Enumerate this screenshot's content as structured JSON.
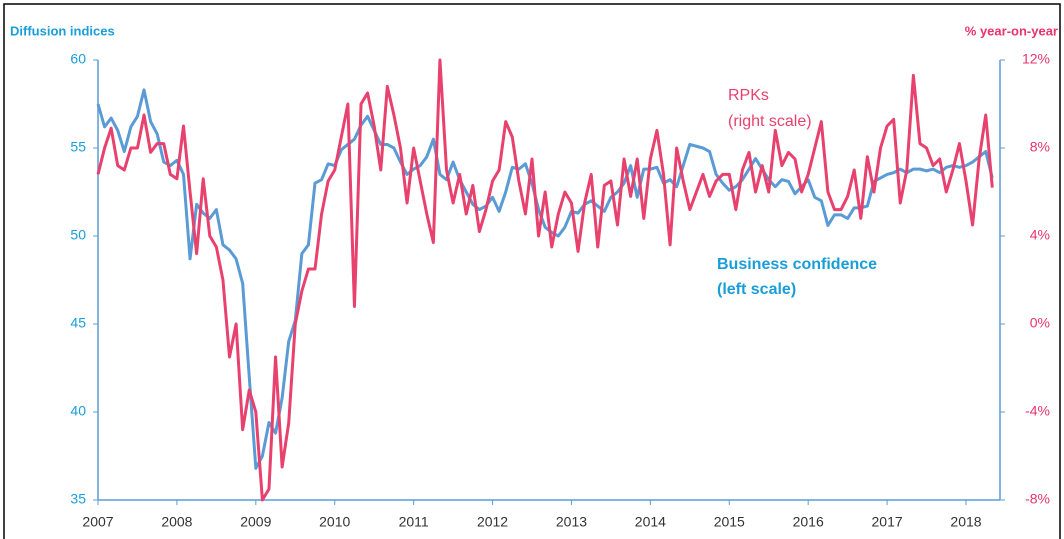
{
  "chart_data": {
    "type": "line",
    "y_axis_label": "Diffusion indices",
    "y2_axis_label": "% year-on-year",
    "categories": [
      "2007",
      null,
      null,
      null,
      null,
      null,
      null,
      null,
      null,
      null,
      null,
      null,
      "2008",
      null,
      null,
      null,
      null,
      null,
      null,
      null,
      null,
      null,
      null,
      null,
      "2009",
      null,
      null,
      null,
      null,
      null,
      null,
      null,
      null,
      null,
      null,
      null,
      "2010",
      null,
      null,
      null,
      null,
      null,
      null,
      null,
      null,
      null,
      null,
      null,
      "2011",
      null,
      null,
      null,
      null,
      null,
      null,
      null,
      null,
      null,
      null,
      null,
      "2012",
      null,
      null,
      null,
      null,
      null,
      null,
      null,
      null,
      null,
      null,
      null,
      "2013",
      null,
      null,
      null,
      null,
      null,
      null,
      null,
      null,
      null,
      null,
      null,
      "2014",
      null,
      null,
      null,
      null,
      null,
      null,
      null,
      null,
      null,
      null,
      null,
      "2015",
      null,
      null,
      null,
      null,
      null,
      null,
      null,
      null,
      null,
      null,
      null,
      "2016",
      null,
      null,
      null,
      null,
      null,
      null,
      null,
      null,
      null,
      null,
      null,
      "2017",
      null,
      null,
      null,
      null,
      null,
      null,
      null,
      null,
      null,
      null,
      null,
      "2018",
      null,
      null,
      null,
      null
    ],
    "series": [
      {
        "name": "Business confidence",
        "color": "#5b9bd5",
        "axis": "y",
        "values": [
          57.5,
          56.2,
          56.7,
          56.0,
          54.8,
          56.2,
          56.8,
          58.3,
          56.5,
          55.8,
          54.2,
          54.0,
          54.3,
          53.5,
          48.7,
          51.8,
          51.3,
          51.0,
          51.5,
          49.5,
          49.2,
          48.7,
          47.3,
          42.0,
          36.8,
          37.5,
          39.4,
          38.8,
          40.8,
          44.0,
          45.2,
          49.0,
          49.5,
          53.0,
          53.2,
          54.1,
          54.0,
          54.9,
          55.2,
          55.5,
          56.3,
          56.8,
          56.0,
          55.2,
          55.2,
          55.0,
          54.2,
          53.5,
          53.8,
          54.0,
          54.5,
          55.5,
          53.5,
          53.2,
          54.2,
          53.2,
          52.5,
          51.8,
          51.5,
          51.7,
          52.2,
          51.4,
          52.5,
          53.9,
          53.8,
          54.1,
          53.0,
          51.5,
          50.5,
          50.2,
          50.0,
          50.5,
          51.4,
          51.3,
          51.8,
          52.0,
          51.7,
          51.4,
          52.2,
          52.5,
          53.0,
          54.0,
          52.2,
          53.8,
          53.8,
          53.9,
          53.0,
          53.2,
          52.8,
          54.0,
          55.2,
          55.1,
          55.0,
          54.8,
          53.5,
          53.0,
          52.6,
          52.8,
          53.2,
          53.8,
          54.4,
          53.8,
          53.2,
          52.8,
          53.2,
          53.1,
          52.4,
          52.8,
          53.2,
          52.2,
          52.0,
          50.6,
          51.2,
          51.2,
          51.0,
          51.6,
          51.6,
          51.7,
          53.1,
          53.3,
          53.5,
          53.6,
          53.8,
          53.6,
          53.8,
          53.8,
          53.7,
          53.8,
          53.6,
          53.9,
          54.0,
          53.9,
          54.0,
          54.2,
          54.5,
          54.8,
          53.3
        ]
      },
      {
        "name": "RPKs",
        "color": "#e8416e",
        "axis": "y2",
        "values": [
          6.8,
          8.0,
          8.9,
          7.2,
          7.0,
          8.0,
          8.0,
          9.5,
          7.8,
          8.2,
          8.2,
          6.8,
          6.6,
          9.0,
          6.0,
          3.2,
          6.6,
          4.0,
          3.5,
          2.0,
          -1.5,
          0.0,
          -4.8,
          -3.0,
          -4.0,
          -8.0,
          -7.5,
          -1.5,
          -6.5,
          -4.5,
          0.0,
          1.5,
          2.5,
          2.5,
          5.0,
          6.5,
          7.0,
          8.5,
          10.0,
          0.8,
          10.0,
          10.5,
          9.0,
          7.0,
          10.8,
          9.5,
          8.0,
          5.5,
          8.0,
          6.5,
          5.0,
          3.7,
          12.0,
          7.0,
          5.5,
          6.8,
          5.0,
          6.3,
          4.2,
          5.2,
          6.5,
          7.0,
          9.2,
          8.5,
          6.5,
          5.0,
          7.5,
          4.0,
          6.0,
          3.5,
          5.0,
          6.0,
          5.5,
          3.3,
          5.5,
          6.8,
          3.5,
          6.3,
          6.5,
          4.5,
          7.5,
          5.8,
          7.5,
          4.8,
          7.5,
          8.8,
          6.8,
          3.6,
          8.0,
          6.5,
          5.2,
          6.0,
          6.8,
          5.8,
          6.5,
          6.8,
          6.8,
          5.2,
          7.0,
          7.8,
          6.0,
          7.2,
          6.0,
          8.8,
          7.2,
          7.8,
          7.5,
          6.0,
          6.8,
          8.0,
          9.2,
          6.0,
          5.2,
          5.2,
          5.8,
          7.0,
          4.8,
          7.6,
          6.0,
          8.0,
          9.0,
          9.3,
          5.5,
          7.0,
          11.3,
          8.2,
          8.0,
          7.2,
          7.5,
          6.0,
          7.0,
          8.2,
          6.5,
          4.5,
          7.5,
          9.5,
          6.2
        ]
      }
    ],
    "annotations": [
      "(right scale)",
      "(left scale)"
    ],
    "ylim": [
      35,
      60
    ],
    "yticks": [
      35,
      40,
      45,
      50,
      55,
      60
    ],
    "y2lim": [
      -8,
      12
    ],
    "y2ticks": [
      {
        "value": -8,
        "label": "-8%"
      },
      {
        "value": -4,
        "label": "-4%"
      },
      {
        "value": 0,
        "label": "0%"
      },
      {
        "value": 4,
        "label": "4%"
      },
      {
        "value": 8,
        "label": "8%"
      },
      {
        "value": 12,
        "label": "12%"
      }
    ],
    "y_tick_color": "#1a9ed9",
    "y2_tick_color": "#e8336d",
    "grid": false
  }
}
